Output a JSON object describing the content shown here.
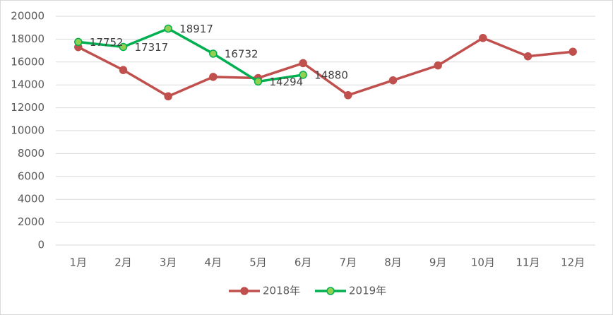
{
  "chart_data": {
    "type": "line",
    "categories": [
      "1月",
      "2月",
      "3月",
      "4月",
      "5月",
      "6月",
      "7月",
      "8月",
      "9月",
      "10月",
      "11月",
      "12月"
    ],
    "series": [
      {
        "name": "2018年",
        "color": "#c0504d",
        "marker_fill": "#c0504d",
        "values": [
          17300,
          15300,
          13000,
          14700,
          14600,
          15900,
          13100,
          14400,
          15700,
          18100,
          16500,
          16900
        ]
      },
      {
        "name": "2019年",
        "color": "#00b050",
        "marker_fill": "#92d050",
        "values": [
          17752,
          17317,
          18917,
          16732,
          14294,
          14880,
          null,
          null,
          null,
          null,
          null,
          null
        ],
        "data_labels": true
      }
    ],
    "ylim": [
      0,
      20000
    ],
    "yticks": [
      0,
      2000,
      4000,
      6000,
      8000,
      10000,
      12000,
      14000,
      16000,
      18000,
      20000
    ],
    "grid": true,
    "legend": "bottom"
  }
}
